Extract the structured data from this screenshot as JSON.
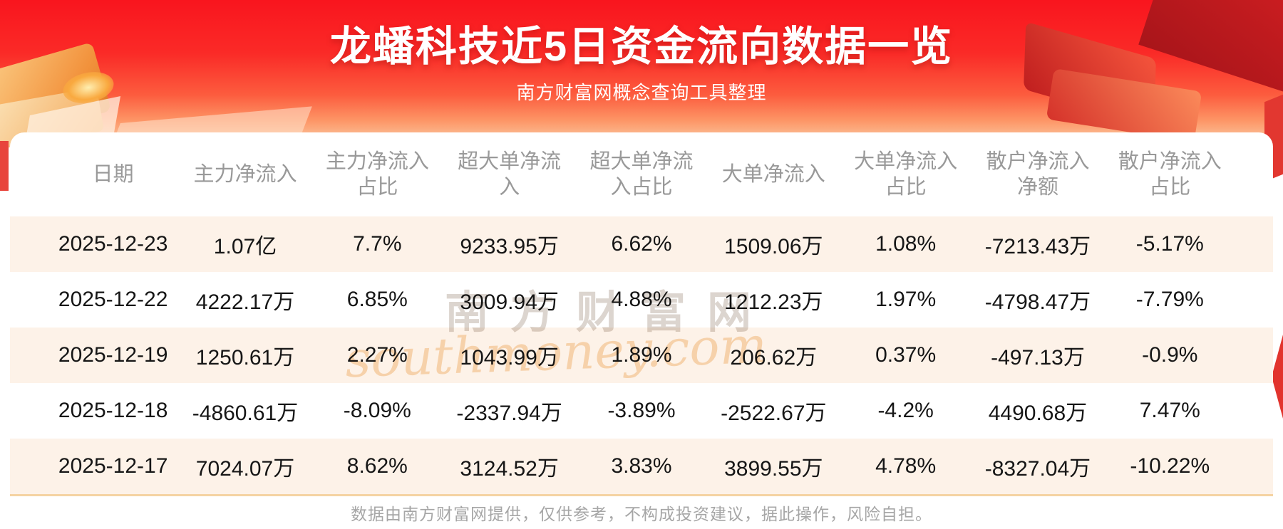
{
  "chart_data": {
    "type": "table",
    "title": "龙蟠科技近5日资金流向数据一览",
    "subtitle": "南方财富网概念查询工具整理",
    "columns": [
      "日期",
      "主力净流入",
      "主力净流入占比",
      "超大单净流入",
      "超大单净流入占比",
      "大单净流入",
      "大单净流入占比",
      "散户净流入净额",
      "散户净流入占比"
    ],
    "columns_display_lines": [
      [
        "日期"
      ],
      [
        "主力净流入"
      ],
      [
        "主力净流入",
        "占比"
      ],
      [
        "超大单净流",
        "入"
      ],
      [
        "超大单净流",
        "入占比"
      ],
      [
        "大单净流入"
      ],
      [
        "大单净流入",
        "占比"
      ],
      [
        "散户净流入",
        "净额"
      ],
      [
        "散户净流入",
        "占比"
      ]
    ],
    "rows": [
      [
        "2025-12-23",
        "1.07亿",
        "7.7%",
        "9233.95万",
        "6.62%",
        "1509.06万",
        "1.08%",
        "-7213.43万",
        "-5.17%"
      ],
      [
        "2025-12-22",
        "4222.17万",
        "6.85%",
        "3009.94万",
        "4.88%",
        "1212.23万",
        "1.97%",
        "-4798.47万",
        "-7.79%"
      ],
      [
        "2025-12-19",
        "1250.61万",
        "2.27%",
        "1043.99万",
        "1.89%",
        "206.62万",
        "0.37%",
        "-497.13万",
        "-0.9%"
      ],
      [
        "2025-12-18",
        "-4860.61万",
        "-8.09%",
        "-2337.94万",
        "-3.89%",
        "-2522.67万",
        "-4.2%",
        "4490.68万",
        "7.47%"
      ],
      [
        "2025-12-17",
        "7024.07万",
        "8.62%",
        "3124.52万",
        "3.83%",
        "3899.55万",
        "4.78%",
        "-8327.04万",
        "-10.22%"
      ]
    ]
  },
  "watermark": {
    "brand": "南方财富网",
    "domain_script": "southmoney.com"
  },
  "footer": {
    "disclaimer": "数据由南方财富网提供，仅供参考，不构成投资建议，据此操作，风险自担。"
  },
  "colors": {
    "banner_red": "#f92125",
    "stripe_peach": "#fdf2e8",
    "divider_orange": "#f5d3a2",
    "header_text_gray": "#999999",
    "cell_text": "#161616",
    "footer_text_gray": "#a6a6a6",
    "title_white": "#ffffff"
  }
}
